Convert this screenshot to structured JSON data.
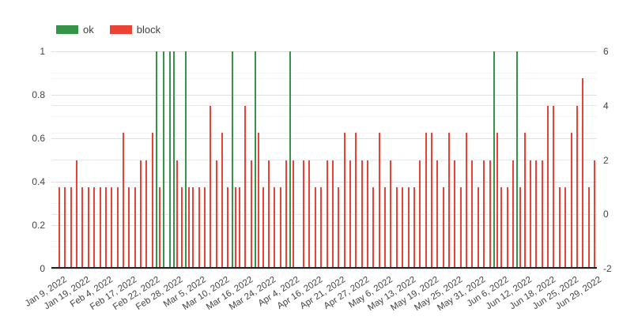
{
  "legend": {
    "items": [
      {
        "label": "ok",
        "color": "#359447"
      },
      {
        "label": "block",
        "color": "#ea4335"
      }
    ]
  },
  "chart_data": {
    "type": "bar",
    "title": "",
    "num_categories": 93,
    "label_step": 4,
    "x_tick_labels": [
      "Jan 9, 2022",
      "Jan 19, 2022",
      "Feb 4, 2022",
      "Feb 17, 2022",
      "Feb 22, 2022",
      "Feb 28, 2022",
      "Mar 5, 2022",
      "Mar 10, 2022",
      "Mar 16, 2022",
      "Mar 24, 2022",
      "Apr 4, 2022",
      "Apr 16, 2022",
      "Apr 21, 2022",
      "Apr 27, 2022",
      "May 6, 2022",
      "May 13, 2022",
      "May 19, 2022",
      "May 25, 2022",
      "May 31, 2022",
      "Jun 6, 2022",
      "Jun 12, 2022",
      "Jun 18, 2022",
      "Jun 25, 2022",
      "Jun 29, 2022"
    ],
    "series": [
      {
        "name": "ok",
        "color": "#359447",
        "axis": "left",
        "values": [
          0,
          0,
          0,
          0,
          0,
          0,
          0,
          0,
          0,
          0,
          0,
          0,
          0,
          0,
          0,
          0,
          0,
          1,
          1,
          1,
          1,
          0,
          1,
          0,
          0,
          0,
          0,
          0,
          0,
          0,
          1,
          0,
          0,
          0,
          1,
          0,
          0,
          0,
          0,
          0,
          1,
          0,
          0,
          0,
          0,
          0,
          0,
          0,
          0,
          0,
          0,
          0,
          0,
          0,
          0,
          0,
          0,
          0,
          0,
          0,
          0,
          0,
          0,
          0,
          0,
          0,
          0,
          0,
          0,
          0,
          0,
          0,
          0,
          0,
          0,
          1,
          0,
          0,
          0,
          1,
          0,
          0,
          0,
          0,
          0,
          0,
          0,
          0,
          0,
          0,
          0,
          0,
          0
        ]
      },
      {
        "name": "block",
        "color": "#ea4335",
        "axis": "right",
        "values": [
          1,
          1,
          1,
          2,
          1,
          1,
          1,
          1,
          1,
          1,
          1,
          3,
          1,
          1,
          2,
          2,
          3,
          1,
          0,
          0,
          2,
          1,
          1,
          1,
          1,
          1,
          4,
          2,
          3,
          1,
          1,
          1,
          4,
          2,
          3,
          1,
          2,
          1,
          1,
          2,
          2,
          0,
          2,
          2,
          1,
          1,
          2,
          2,
          1,
          3,
          2,
          3,
          2,
          2,
          1,
          3,
          1,
          2,
          1,
          1,
          1,
          1,
          2,
          3,
          3,
          2,
          1,
          3,
          2,
          1,
          3,
          2,
          1,
          2,
          2,
          3,
          1,
          1,
          2,
          1,
          3,
          2,
          2,
          2,
          4,
          4,
          1,
          1,
          3,
          4,
          5,
          1,
          2
        ]
      }
    ],
    "left_axis": {
      "range": [
        0,
        1
      ],
      "ticks": [
        {
          "label": "0",
          "value": 0
        },
        {
          "label": "0.2",
          "value": 0.2
        },
        {
          "label": "0.4",
          "value": 0.4
        },
        {
          "label": "0.6",
          "value": 0.6
        },
        {
          "label": "0.8",
          "value": 0.8
        },
        {
          "label": "1",
          "value": 1
        }
      ]
    },
    "right_axis": {
      "range": [
        -2,
        6
      ],
      "ticks": [
        {
          "label": "-2",
          "value": -2
        },
        {
          "label": "0",
          "value": 0
        },
        {
          "label": "2",
          "value": 2
        },
        {
          "label": "4",
          "value": 4
        },
        {
          "label": "6",
          "value": 6
        }
      ]
    },
    "gridlines": {
      "major_left": [
        0,
        0.2,
        0.4,
        0.6,
        0.8,
        1
      ],
      "minor_left": [
        0.1,
        0.3,
        0.5,
        0.7,
        0.9
      ],
      "major_right": [
        0,
        2,
        4
      ],
      "minor_right": [
        -1,
        1,
        3,
        5
      ]
    },
    "legend_position": "top",
    "grid": true
  }
}
